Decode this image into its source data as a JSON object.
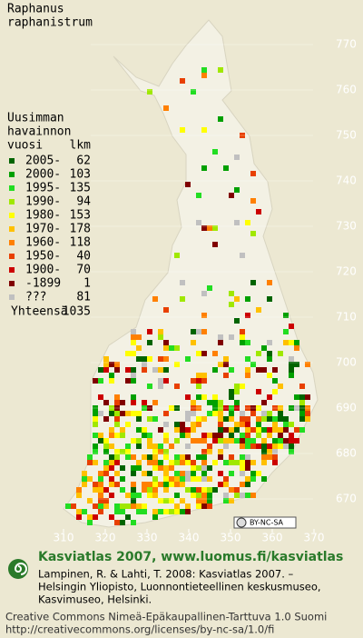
{
  "title": [
    "Raphanus",
    "raphanistrum"
  ],
  "legend": {
    "heading": [
      "Uusimman",
      "havainnon",
      "vuosi"
    ],
    "count_heading": "lkm",
    "items": [
      {
        "label": "2005-",
        "count": 62,
        "color": "#006400"
      },
      {
        "label": "2000-",
        "count": 103,
        "color": "#00a000"
      },
      {
        "label": "1995-",
        "count": 135,
        "color": "#22dd22"
      },
      {
        "label": "1990-",
        "count": 94,
        "color": "#a0e800"
      },
      {
        "label": "1980-",
        "count": 153,
        "color": "#ffff00"
      },
      {
        "label": "1970-",
        "count": 178,
        "color": "#ffc000"
      },
      {
        "label": "1960-",
        "count": 118,
        "color": "#ff8000"
      },
      {
        "label": "1950-",
        "count": 40,
        "color": "#e84000"
      },
      {
        "label": "1900-",
        "count": 70,
        "color": "#cc0000"
      },
      {
        "label": "-1899",
        "count": 1,
        "color": "#800000"
      },
      {
        "label": "???",
        "count": 81,
        "color": "#c0c0c0"
      }
    ],
    "total_label": "Yhteensä",
    "total": 1035
  },
  "yticks": [
    770,
    760,
    750,
    740,
    730,
    720,
    710,
    700,
    690,
    680,
    670
  ],
  "xticks": [
    310,
    320,
    330,
    340,
    350,
    360,
    370
  ],
  "license_badge": "BY-NC-SA",
  "footer": {
    "title": "Kasviatlas 2007, www.luomus.fi/kasviatlas",
    "citation": [
      "Lampinen, R. & Lahti, T. 2008: Kasviatlas 2007. –",
      "Helsingin Yliopisto, Luonnontieteellinen keskusmuseo,",
      "Kasvimuseo, Helsinki."
    ],
    "license": [
      "Creative Commons Nimeä-Epäkaupallinen-Tarttuva 1.0 Suomi",
      "http://creativecommons.org/licenses/by-nc-sa/1.0/fi"
    ]
  }
}
